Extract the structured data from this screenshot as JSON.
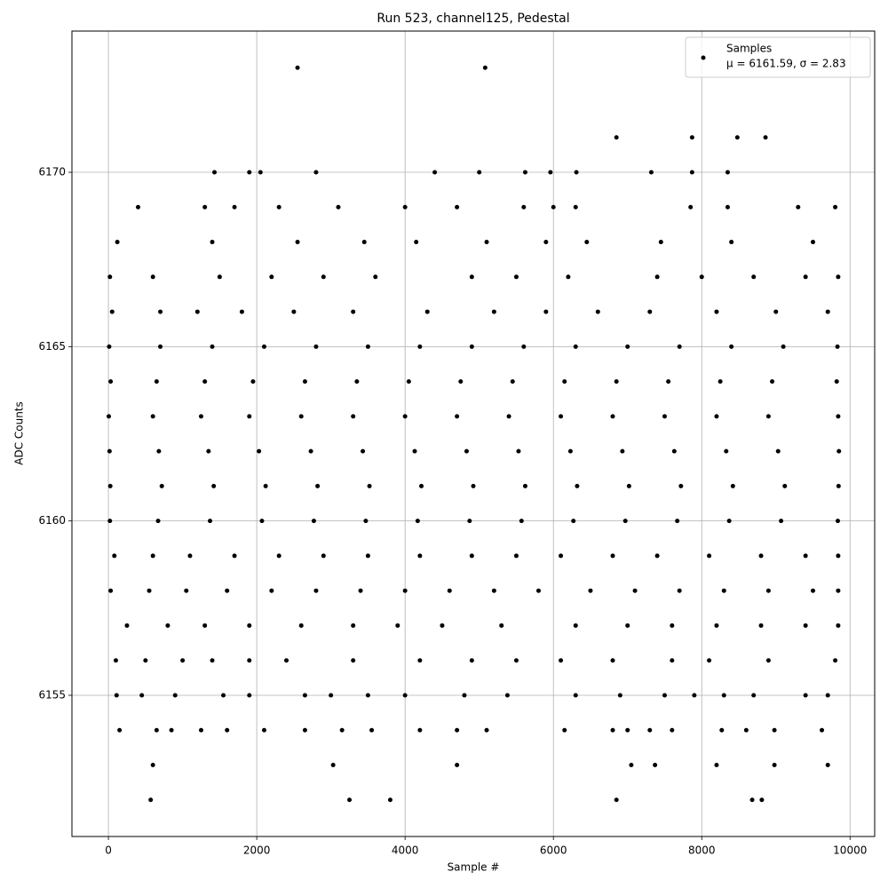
{
  "chart_data": {
    "type": "scatter",
    "title": "Run 523, channel125, Pedestal",
    "x_label": "Sample #",
    "y_label": "ADC Counts",
    "xlim": [
      -492,
      10332
    ],
    "ylim": [
      6150.95,
      6174.05
    ],
    "xticks": [
      0,
      2000,
      4000,
      6000,
      8000,
      10000
    ],
    "yticks": [
      6155,
      6160,
      6165,
      6170
    ],
    "grid": true,
    "legend": "upper right",
    "legend_subtitle": "μ = 6161.59, σ = 2.83",
    "series": [
      {
        "name": "Samples",
        "color": "#000000",
        "x": [
          2550,
          5080,
          6850,
          7870,
          8480,
          8860,
          1430,
          1900,
          2050,
          2800,
          4400,
          5000,
          5620,
          5960,
          6310,
          7320,
          7870,
          8350,
          400,
          1300,
          1700,
          2300,
          3100,
          4000,
          4700,
          5600,
          6000,
          6300,
          7850,
          8350,
          9300,
          9800,
          120,
          1400,
          2550,
          3450,
          4150,
          5100,
          5900,
          6450,
          7450,
          8400,
          9500,
          20,
          600,
          1500,
          2200,
          2900,
          3600,
          4900,
          5500,
          6200,
          7400,
          8000,
          8700,
          9400,
          9840,
          50,
          700,
          1200,
          1800,
          2500,
          3300,
          4300,
          5200,
          5900,
          6600,
          7300,
          8200,
          9000,
          9700,
          10,
          700,
          1400,
          2100,
          2800,
          3500,
          4200,
          4900,
          5600,
          6300,
          7000,
          7700,
          8400,
          9100,
          9830,
          30,
          650,
          1300,
          1950,
          2650,
          3350,
          4050,
          4750,
          5450,
          6150,
          6850,
          7550,
          8250,
          8950,
          9820,
          5,
          600,
          1250,
          1900,
          2600,
          3300,
          4000,
          4700,
          5400,
          6100,
          6800,
          7500,
          8200,
          8900,
          9840,
          15,
          680,
          1350,
          2030,
          2730,
          3430,
          4130,
          4830,
          5530,
          6230,
          6930,
          7630,
          8330,
          9030,
          9850,
          25,
          720,
          1420,
          2120,
          2820,
          3520,
          4220,
          4920,
          5620,
          6320,
          7020,
          7720,
          8420,
          9120,
          9845,
          20,
          670,
          1370,
          2070,
          2770,
          3470,
          4170,
          4870,
          5570,
          6270,
          6970,
          7670,
          8370,
          9070,
          9835,
          80,
          600,
          1100,
          1700,
          2300,
          2900,
          3500,
          4200,
          4900,
          5500,
          6100,
          6800,
          7400,
          8100,
          8800,
          9400,
          9840,
          30,
          550,
          1050,
          1600,
          2200,
          2800,
          3400,
          4000,
          4600,
          5200,
          5800,
          6500,
          7100,
          7700,
          8300,
          8900,
          9500,
          9840,
          250,
          800,
          1300,
          1900,
          2600,
          3300,
          3900,
          4500,
          5300,
          6300,
          7000,
          7600,
          8200,
          8800,
          9400,
          9840,
          100,
          500,
          1000,
          1400,
          1900,
          2400,
          3300,
          4200,
          4900,
          5500,
          6100,
          6800,
          7600,
          8100,
          8900,
          9800,
          110,
          450,
          900,
          1550,
          1900,
          2650,
          3000,
          3500,
          4000,
          4800,
          5380,
          6300,
          6900,
          7500,
          7900,
          8300,
          8700,
          9400,
          9700,
          150,
          650,
          850,
          1250,
          1600,
          2100,
          2650,
          3150,
          3550,
          4200,
          4700,
          5100,
          6150,
          6800,
          7000,
          7300,
          7600,
          8270,
          8600,
          8980,
          9620,
          600,
          3030,
          4700,
          7050,
          7370,
          8200,
          8980,
          9700,
          570,
          3250,
          3800,
          6850,
          8680,
          8810
        ],
        "values": [
          6173,
          6173,
          6171,
          6171,
          6171,
          6171,
          6170,
          6170,
          6170,
          6170,
          6170,
          6170,
          6170,
          6170,
          6170,
          6170,
          6170,
          6170,
          6169,
          6169,
          6169,
          6169,
          6169,
          6169,
          6169,
          6169,
          6169,
          6169,
          6169,
          6169,
          6169,
          6169,
          6168,
          6168,
          6168,
          6168,
          6168,
          6168,
          6168,
          6168,
          6168,
          6168,
          6168,
          6167,
          6167,
          6167,
          6167,
          6167,
          6167,
          6167,
          6167,
          6167,
          6167,
          6167,
          6167,
          6167,
          6167,
          6166,
          6166,
          6166,
          6166,
          6166,
          6166,
          6166,
          6166,
          6166,
          6166,
          6166,
          6166,
          6166,
          6166,
          6165,
          6165,
          6165,
          6165,
          6165,
          6165,
          6165,
          6165,
          6165,
          6165,
          6165,
          6165,
          6165,
          6165,
          6165,
          6164,
          6164,
          6164,
          6164,
          6164,
          6164,
          6164,
          6164,
          6164,
          6164,
          6164,
          6164,
          6164,
          6164,
          6164,
          6163,
          6163,
          6163,
          6163,
          6163,
          6163,
          6163,
          6163,
          6163,
          6163,
          6163,
          6163,
          6163,
          6163,
          6163,
          6162,
          6162,
          6162,
          6162,
          6162,
          6162,
          6162,
          6162,
          6162,
          6162,
          6162,
          6162,
          6162,
          6162,
          6162,
          6161,
          6161,
          6161,
          6161,
          6161,
          6161,
          6161,
          6161,
          6161,
          6161,
          6161,
          6161,
          6161,
          6161,
          6161,
          6160,
          6160,
          6160,
          6160,
          6160,
          6160,
          6160,
          6160,
          6160,
          6160,
          6160,
          6160,
          6160,
          6160,
          6160,
          6159,
          6159,
          6159,
          6159,
          6159,
          6159,
          6159,
          6159,
          6159,
          6159,
          6159,
          6159,
          6159,
          6159,
          6159,
          6159,
          6159,
          6158,
          6158,
          6158,
          6158,
          6158,
          6158,
          6158,
          6158,
          6158,
          6158,
          6158,
          6158,
          6158,
          6158,
          6158,
          6158,
          6158,
          6158,
          6157,
          6157,
          6157,
          6157,
          6157,
          6157,
          6157,
          6157,
          6157,
          6157,
          6157,
          6157,
          6157,
          6157,
          6157,
          6157,
          6156,
          6156,
          6156,
          6156,
          6156,
          6156,
          6156,
          6156,
          6156,
          6156,
          6156,
          6156,
          6156,
          6156,
          6156,
          6156,
          6155,
          6155,
          6155,
          6155,
          6155,
          6155,
          6155,
          6155,
          6155,
          6155,
          6155,
          6155,
          6155,
          6155,
          6155,
          6155,
          6155,
          6155,
          6155,
          6154,
          6154,
          6154,
          6154,
          6154,
          6154,
          6154,
          6154,
          6154,
          6154,
          6154,
          6154,
          6154,
          6154,
          6154,
          6154,
          6154,
          6154,
          6154,
          6154,
          6154,
          6153,
          6153,
          6153,
          6153,
          6153,
          6153,
          6153,
          6153,
          6152,
          6152,
          6152,
          6152,
          6152,
          6152
        ]
      }
    ]
  }
}
